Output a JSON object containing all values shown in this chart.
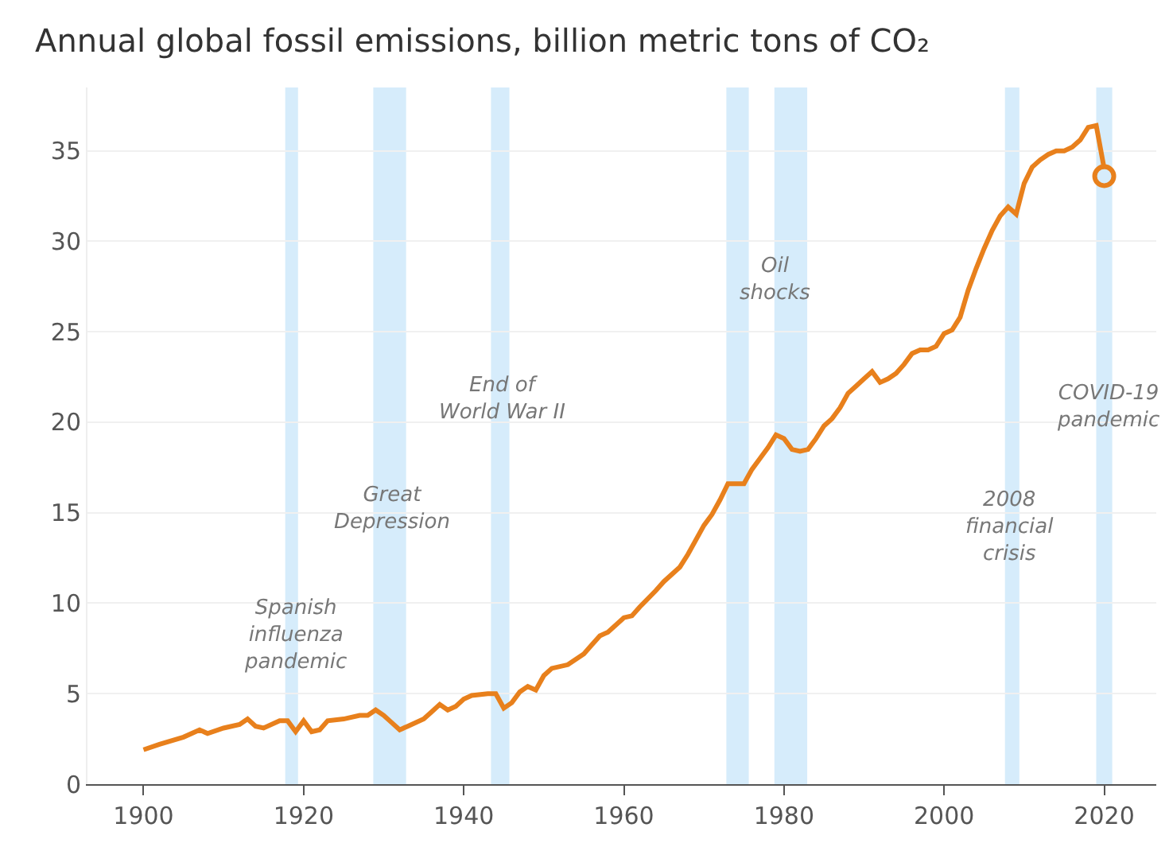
{
  "chart_data": {
    "type": "line",
    "title": "Annual global fossil emissions, billion metric tons of CO₂",
    "series": [
      {
        "name": null,
        "color": "#e8801c",
        "marker": "none",
        "line_style": "solid",
        "x": [
          1900,
          1902,
          1905,
          1907,
          1908,
          1910,
          1912,
          1913,
          1914,
          1915,
          1917,
          1918,
          1919,
          1920,
          1921,
          1922,
          1923,
          1925,
          1927,
          1928,
          1929,
          1930,
          1931,
          1932,
          1933,
          1935,
          1936,
          1937,
          1938,
          1939,
          1940,
          1941,
          1943,
          1944,
          1945,
          1946,
          1947,
          1948,
          1949,
          1950,
          1951,
          1953,
          1955,
          1956,
          1957,
          1958,
          1960,
          1961,
          1962,
          1964,
          1965,
          1967,
          1968,
          1970,
          1971,
          1972,
          1973,
          1974,
          1975,
          1976,
          1977,
          1978,
          1979,
          1980,
          1981,
          1982,
          1983,
          1984,
          1985,
          1986,
          1987,
          1988,
          1989,
          1990,
          1991,
          1992,
          1993,
          1994,
          1995,
          1996,
          1997,
          1998,
          1999,
          2000,
          2001,
          2002,
          2003,
          2004,
          2005,
          2006,
          2007,
          2008,
          2009,
          2010,
          2011,
          2012,
          2013,
          2014,
          2015,
          2016,
          2017,
          2018,
          2019,
          2020
        ],
        "values": [
          1.9,
          2.2,
          2.6,
          3.0,
          2.8,
          3.1,
          3.3,
          3.6,
          3.2,
          3.1,
          3.5,
          3.5,
          2.9,
          3.5,
          2.9,
          3.0,
          3.5,
          3.6,
          3.8,
          3.8,
          4.1,
          3.8,
          3.4,
          3.0,
          3.2,
          3.6,
          4.0,
          4.4,
          4.1,
          4.3,
          4.7,
          4.9,
          5.0,
          5.0,
          4.2,
          4.5,
          5.1,
          5.4,
          5.2,
          6.0,
          6.4,
          6.6,
          7.2,
          7.7,
          8.2,
          8.4,
          9.2,
          9.3,
          9.8,
          10.7,
          11.2,
          12.0,
          12.7,
          14.3,
          14.9,
          15.7,
          16.6,
          16.6,
          16.6,
          17.4,
          18.0,
          18.6,
          19.3,
          19.1,
          18.5,
          18.4,
          18.5,
          19.1,
          19.8,
          20.2,
          20.8,
          21.6,
          22.0,
          22.4,
          22.8,
          22.2,
          22.4,
          22.7,
          23.2,
          23.8,
          24.0,
          24.0,
          24.2,
          24.9,
          25.1,
          25.8,
          27.3,
          28.5,
          29.6,
          30.6,
          31.4,
          31.9,
          31.5,
          33.2,
          34.1,
          34.5,
          34.8,
          35.0,
          35.0,
          35.2,
          35.6,
          36.3,
          36.4,
          34.0
        ]
      },
      {
        "name": null,
        "type": "scatter",
        "color": "#e8801c",
        "marker": "circle",
        "x": [
          2020
        ],
        "values": [
          33.6
        ]
      }
    ],
    "xlim": [
      1893,
      2026.5
    ],
    "xticks": [
      1900,
      1920,
      1940,
      1960,
      1980,
      2000,
      2020
    ],
    "ylim": [
      0,
      38.5
    ],
    "yticks": [
      0,
      5,
      10,
      15,
      20,
      25,
      30,
      35
    ],
    "grid": "y",
    "bands": [
      {
        "axis": "x",
        "from": 1917.7,
        "to": 1919.3,
        "color": "#d6ecfb"
      },
      {
        "axis": "x",
        "from": 1928.7,
        "to": 1932.8,
        "color": "#d6ecfb"
      },
      {
        "axis": "x",
        "from": 1943.4,
        "to": 1945.7,
        "color": "#d6ecfb"
      },
      {
        "axis": "x",
        "from": 1972.8,
        "to": 1975.6,
        "color": "#d6ecfb"
      },
      {
        "axis": "x",
        "from": 1978.8,
        "to": 1982.9,
        "color": "#d6ecfb"
      },
      {
        "axis": "x",
        "from": 2007.6,
        "to": 2009.4,
        "color": "#d6ecfb"
      },
      {
        "axis": "x",
        "from": 2019.0,
        "to": 2021.0,
        "color": "#d6ecfb"
      }
    ],
    "annotations": [
      {
        "text": "Spanish\ninfluenza\npandemic",
        "x": 1919,
        "y": 8.2
      },
      "Great\nDepression",
      "End of\nWorld War II",
      {
        "text": "Oil\nshocks",
        "x": 1979,
        "y": 27.9
      },
      {
        "text": "2008\nfinancial\ncrisis",
        "x": 2008.3,
        "y": 14.2
      },
      {
        "text": "COVID-19\npandemic",
        "x": 2020.5,
        "y": 20.8
      }
    ]
  }
}
